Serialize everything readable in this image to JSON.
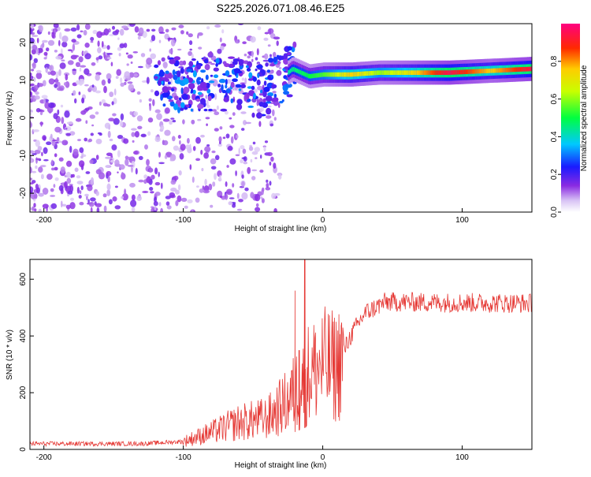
{
  "title": "S225.2026.071.08.46.E25",
  "colors": {
    "snr_line": "#e53935",
    "ridge_strong": "#ff2a2a",
    "frame": "#000000"
  },
  "chart_data": [
    {
      "type": "heatmap",
      "name": "spectrogram",
      "xlabel": "Height of straight line (km)",
      "ylabel": "Frequency (Hz)",
      "xlim": [
        -210,
        150
      ],
      "ylim": [
        -25,
        25
      ],
      "xticks": [
        -200,
        -100,
        0,
        100
      ],
      "yticks": [
        -20,
        -10,
        0,
        10,
        20
      ],
      "colorbar": {
        "label": "Normalized spectral amplitude",
        "range": [
          0,
          1
        ],
        "ticks": [
          0.0,
          0.2,
          0.4,
          0.6,
          0.8
        ]
      },
      "ridge": [
        {
          "x": -60,
          "freq": 9,
          "amp": 0.25
        },
        {
          "x": -45,
          "freq": 7,
          "amp": 0.3
        },
        {
          "x": -35,
          "freq": 9,
          "amp": 0.35
        },
        {
          "x": -22,
          "freq": 13,
          "amp": 0.45
        },
        {
          "x": -10,
          "freq": 11,
          "amp": 0.5
        },
        {
          "x": 0,
          "freq": 11.5,
          "amp": 0.55
        },
        {
          "x": 20,
          "freq": 11.5,
          "amp": 0.75
        },
        {
          "x": 40,
          "freq": 12,
          "amp": 0.6
        },
        {
          "x": 60,
          "freq": 12,
          "amp": 0.7
        },
        {
          "x": 90,
          "freq": 12,
          "amp": 0.95
        },
        {
          "x": 120,
          "freq": 12.5,
          "amp": 0.75
        },
        {
          "x": 150,
          "freq": 13,
          "amp": 0.95
        }
      ]
    },
    {
      "type": "line",
      "name": "snr",
      "xlabel": "Height of straight line (km)",
      "ylabel": "SNR (10 * v/v)",
      "xlim": [
        -210,
        150
      ],
      "ylim": [
        0,
        670
      ],
      "xticks": [
        -200,
        -100,
        0,
        100
      ],
      "yticks": [
        0,
        200,
        400,
        600
      ],
      "profile": [
        {
          "x": -210,
          "y": 20
        },
        {
          "x": -130,
          "y": 20
        },
        {
          "x": -100,
          "y": 28
        },
        {
          "x": -80,
          "y": 60
        },
        {
          "x": -60,
          "y": 95
        },
        {
          "x": -40,
          "y": 110
        },
        {
          "x": -25,
          "y": 170
        },
        {
          "x": -12,
          "y": 260
        },
        {
          "x": 0,
          "y": 300
        },
        {
          "x": 10,
          "y": 290
        },
        {
          "x": 20,
          "y": 400
        },
        {
          "x": 30,
          "y": 480
        },
        {
          "x": 45,
          "y": 520
        },
        {
          "x": 150,
          "y": 515
        }
      ],
      "spikes": [
        {
          "x": -13,
          "y": 670
        },
        {
          "x": -20,
          "y": 560
        },
        {
          "x": -17,
          "y": 350
        }
      ]
    }
  ]
}
